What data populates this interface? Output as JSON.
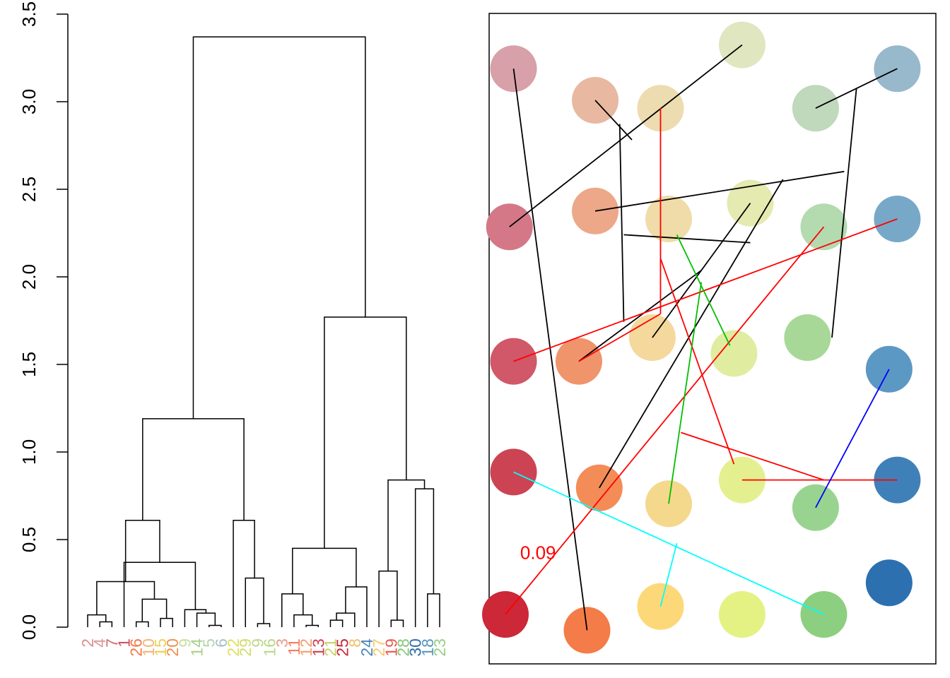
{
  "chart_data": [
    {
      "type": "dendrogram",
      "title": "",
      "xlabel": "",
      "ylabel": "",
      "ylim": [
        0,
        3.5
      ],
      "y_ticks": [
        "0.0",
        "0.5",
        "1.0",
        "1.5",
        "2.0",
        "2.5",
        "3.0",
        "3.5"
      ],
      "y_tick_values": [
        0,
        0.5,
        1,
        1.5,
        2,
        2.5,
        3,
        3.5
      ],
      "leaves": [
        {
          "label": "2",
          "color": "#e08f8f"
        },
        {
          "label": "4",
          "color": "#d99a9a"
        },
        {
          "label": "7",
          "color": "#d57070"
        },
        {
          "label": "1",
          "color": "#d0506a"
        },
        {
          "label": "26",
          "color": "#f07a45"
        },
        {
          "label": "10",
          "color": "#f4b678"
        },
        {
          "label": "15",
          "color": "#e8d25a"
        },
        {
          "label": "20",
          "color": "#f09050"
        },
        {
          "label": "9",
          "color": "#c8e0a0"
        },
        {
          "label": "14",
          "color": "#a8d08a"
        },
        {
          "label": "5",
          "color": "#b8d4b0"
        },
        {
          "label": "6",
          "color": "#a8c0cc"
        },
        {
          "label": "22",
          "color": "#e0e060"
        },
        {
          "label": "29",
          "color": "#d4dc70"
        },
        {
          "label": "9",
          "color": "#c0d890"
        },
        {
          "label": "16",
          "color": "#b8d888"
        },
        {
          "label": "3",
          "color": "#e8a090"
        },
        {
          "label": "11",
          "color": "#f08060"
        },
        {
          "label": "12",
          "color": "#f4a070"
        },
        {
          "label": "13",
          "color": "#d04058"
        },
        {
          "label": "21",
          "color": "#c8d068"
        },
        {
          "label": "25",
          "color": "#c82838"
        },
        {
          "label": "8",
          "color": "#f0c070"
        },
        {
          "label": "24",
          "color": "#4888bc"
        },
        {
          "label": "27",
          "color": "#f8c870"
        },
        {
          "label": "19",
          "color": "#e85a50"
        },
        {
          "label": "28",
          "color": "#88c878"
        },
        {
          "label": "30",
          "color": "#2e6eac"
        },
        {
          "label": "18",
          "color": "#5898c4"
        },
        {
          "label": "23",
          "color": "#98d088"
        }
      ],
      "merges": [
        [
          -2,
          -3,
          0.03
        ],
        [
          -1,
          1,
          0.07
        ],
        [
          -5,
          -6,
          0.03
        ],
        [
          -7,
          -8,
          0.05
        ],
        [
          3,
          4,
          0.16
        ],
        [
          2,
          5,
          0.26
        ],
        [
          -11,
          -12,
          0.01
        ],
        [
          -10,
          7,
          0.08
        ],
        [
          -9,
          8,
          0.1
        ],
        [
          -4,
          9,
          0.37
        ],
        [
          6,
          10,
          0.61
        ],
        [
          -15,
          -16,
          0.02
        ],
        [
          -14,
          12,
          0.28
        ],
        [
          -13,
          13,
          0.61
        ],
        [
          11,
          14,
          1.19
        ],
        [
          -19,
          -20,
          0.01
        ],
        [
          -18,
          16,
          0.07
        ],
        [
          -17,
          17,
          0.19
        ],
        [
          -21,
          -22,
          0.04
        ],
        [
          19,
          -23,
          0.08
        ],
        [
          -24,
          20,
          0.23
        ],
        [
          18,
          21,
          0.45
        ],
        [
          -26,
          -27,
          0.04
        ],
        [
          -25,
          23,
          0.32
        ],
        [
          -29,
          -30,
          0.19
        ],
        [
          -28,
          25,
          0.79
        ],
        [
          24,
          26,
          0.84
        ],
        [
          22,
          27,
          1.77
        ],
        [
          15,
          28,
          3.37
        ]
      ]
    },
    {
      "type": "network",
      "title": "",
      "xlim": [
        0,
        5.1
      ],
      "ylim": [
        0,
        7.4
      ],
      "nodes": [
        {
          "x": 0.3,
          "y": 7.0,
          "color": "#d8a0a8"
        },
        {
          "x": 1.3,
          "y": 6.6,
          "color": "#e8b8a0"
        },
        {
          "x": 2.1,
          "y": 6.5,
          "color": "#ecdcb0"
        },
        {
          "x": 3.1,
          "y": 7.3,
          "color": "#e0e6c0"
        },
        {
          "x": 4.0,
          "y": 6.5,
          "color": "#c0d8bc"
        },
        {
          "x": 5.0,
          "y": 7.0,
          "color": "#98b8cc"
        },
        {
          "x": 0.25,
          "y": 5.0,
          "color": "#d47888"
        },
        {
          "x": 1.3,
          "y": 5.2,
          "color": "#eca888"
        },
        {
          "x": 2.2,
          "y": 5.1,
          "color": "#f0dca8"
        },
        {
          "x": 3.2,
          "y": 5.3,
          "color": "#e4eab0"
        },
        {
          "x": 4.1,
          "y": 5.0,
          "color": "#b4dab0"
        },
        {
          "x": 5.0,
          "y": 5.1,
          "color": "#78a8c8"
        },
        {
          "x": 0.3,
          "y": 3.3,
          "color": "#d05868"
        },
        {
          "x": 1.1,
          "y": 3.3,
          "color": "#f0946c"
        },
        {
          "x": 2.0,
          "y": 3.6,
          "color": "#f4d89c"
        },
        {
          "x": 3.0,
          "y": 3.4,
          "color": "#e0eca0"
        },
        {
          "x": 3.9,
          "y": 3.6,
          "color": "#a8d898"
        },
        {
          "x": 4.9,
          "y": 3.2,
          "color": "#5c98c4"
        },
        {
          "x": 0.3,
          "y": 1.9,
          "color": "#cc4454"
        },
        {
          "x": 1.35,
          "y": 1.7,
          "color": "#f48c58"
        },
        {
          "x": 2.2,
          "y": 1.5,
          "color": "#f4d88c"
        },
        {
          "x": 3.1,
          "y": 1.8,
          "color": "#e4f090"
        },
        {
          "x": 4.0,
          "y": 1.45,
          "color": "#98d490"
        },
        {
          "x": 5.0,
          "y": 1.8,
          "color": "#4080b8"
        },
        {
          "x": 0.2,
          "y": 0.1,
          "color": "#cc2838"
        },
        {
          "x": 1.2,
          "y": -0.1,
          "color": "#f47c48"
        },
        {
          "x": 2.1,
          "y": 0.2,
          "color": "#fcd878"
        },
        {
          "x": 3.1,
          "y": 0.1,
          "color": "#e4f284"
        },
        {
          "x": 4.1,
          "y": 0.1,
          "color": "#8ccf80"
        },
        {
          "x": 4.9,
          "y": 0.5,
          "color": "#2c70b0"
        }
      ],
      "segments": [
        {
          "color": "#000000",
          "x1": 0.3,
          "y1": 7.0,
          "x2": 1.2,
          "y2": -0.1
        },
        {
          "color": "#000000",
          "x1": 0.25,
          "y1": 5.0,
          "x2": 3.1,
          "y2": 7.3
        },
        {
          "color": "#000000",
          "x1": 1.3,
          "y1": 6.6,
          "x2": 1.75,
          "y2": 6.1
        },
        {
          "color": "#000000",
          "x1": 1.6,
          "y1": 6.3,
          "x2": 1.65,
          "y2": 3.8
        },
        {
          "color": "#000000",
          "x1": 4.0,
          "y1": 6.5,
          "x2": 5.0,
          "y2": 7.0
        },
        {
          "color": "#000000",
          "x1": 4.5,
          "y1": 6.75,
          "x2": 4.2,
          "y2": 3.6
        },
        {
          "color": "#000000",
          "x1": 1.3,
          "y1": 5.2,
          "x2": 4.35,
          "y2": 5.7
        },
        {
          "color": "#000000",
          "x1": 1.65,
          "y1": 4.9,
          "x2": 3.2,
          "y2": 4.8
        },
        {
          "color": "#000000",
          "x1": 1.1,
          "y1": 3.3,
          "x2": 2.6,
          "y2": 4.45
        },
        {
          "color": "#000000",
          "x1": 2.0,
          "y1": 3.6,
          "x2": 3.2,
          "y2": 5.3
        },
        {
          "color": "#000000",
          "x1": 1.35,
          "y1": 1.7,
          "x2": 3.6,
          "y2": 5.6
        },
        {
          "color": "#ff0000",
          "x1": 0.3,
          "y1": 3.3,
          "x2": 5.0,
          "y2": 5.1
        },
        {
          "color": "#ff0000",
          "x1": 1.1,
          "y1": 3.3,
          "x2": 2.1,
          "y2": 3.9
        },
        {
          "color": "#ff0000",
          "x1": 2.1,
          "y1": 6.5,
          "x2": 2.1,
          "y2": 3.9
        },
        {
          "color": "#ff0000",
          "x1": 0.2,
          "y1": 0.1,
          "x2": 4.1,
          "y2": 5.0
        },
        {
          "color": "#ff0000",
          "x1": 2.1,
          "y1": 4.6,
          "x2": 3.0,
          "y2": 2.0
        },
        {
          "color": "#ff0000",
          "x1": 2.35,
          "y1": 2.4,
          "x2": 4.1,
          "y2": 1.8
        },
        {
          "color": "#ff0000",
          "x1": 3.1,
          "y1": 1.8,
          "x2": 5.0,
          "y2": 1.8
        },
        {
          "color": "#00c000",
          "x1": 2.3,
          "y1": 4.9,
          "x2": 2.95,
          "y2": 3.5
        },
        {
          "color": "#00c000",
          "x1": 2.6,
          "y1": 4.3,
          "x2": 2.2,
          "y2": 1.5
        },
        {
          "color": "#0000ff",
          "x1": 4.0,
          "y1": 1.45,
          "x2": 4.9,
          "y2": 3.2
        },
        {
          "color": "#00ffff",
          "x1": 0.3,
          "y1": 1.9,
          "x2": 4.1,
          "y2": 0.1
        },
        {
          "color": "#00ffff",
          "x1": 2.1,
          "y1": 0.2,
          "x2": 2.3,
          "y2": 1.0
        }
      ],
      "annotations": [
        {
          "text": "0.09",
          "x": 0.6,
          "y": 0.8,
          "color": "#ff0000"
        }
      ]
    }
  ]
}
